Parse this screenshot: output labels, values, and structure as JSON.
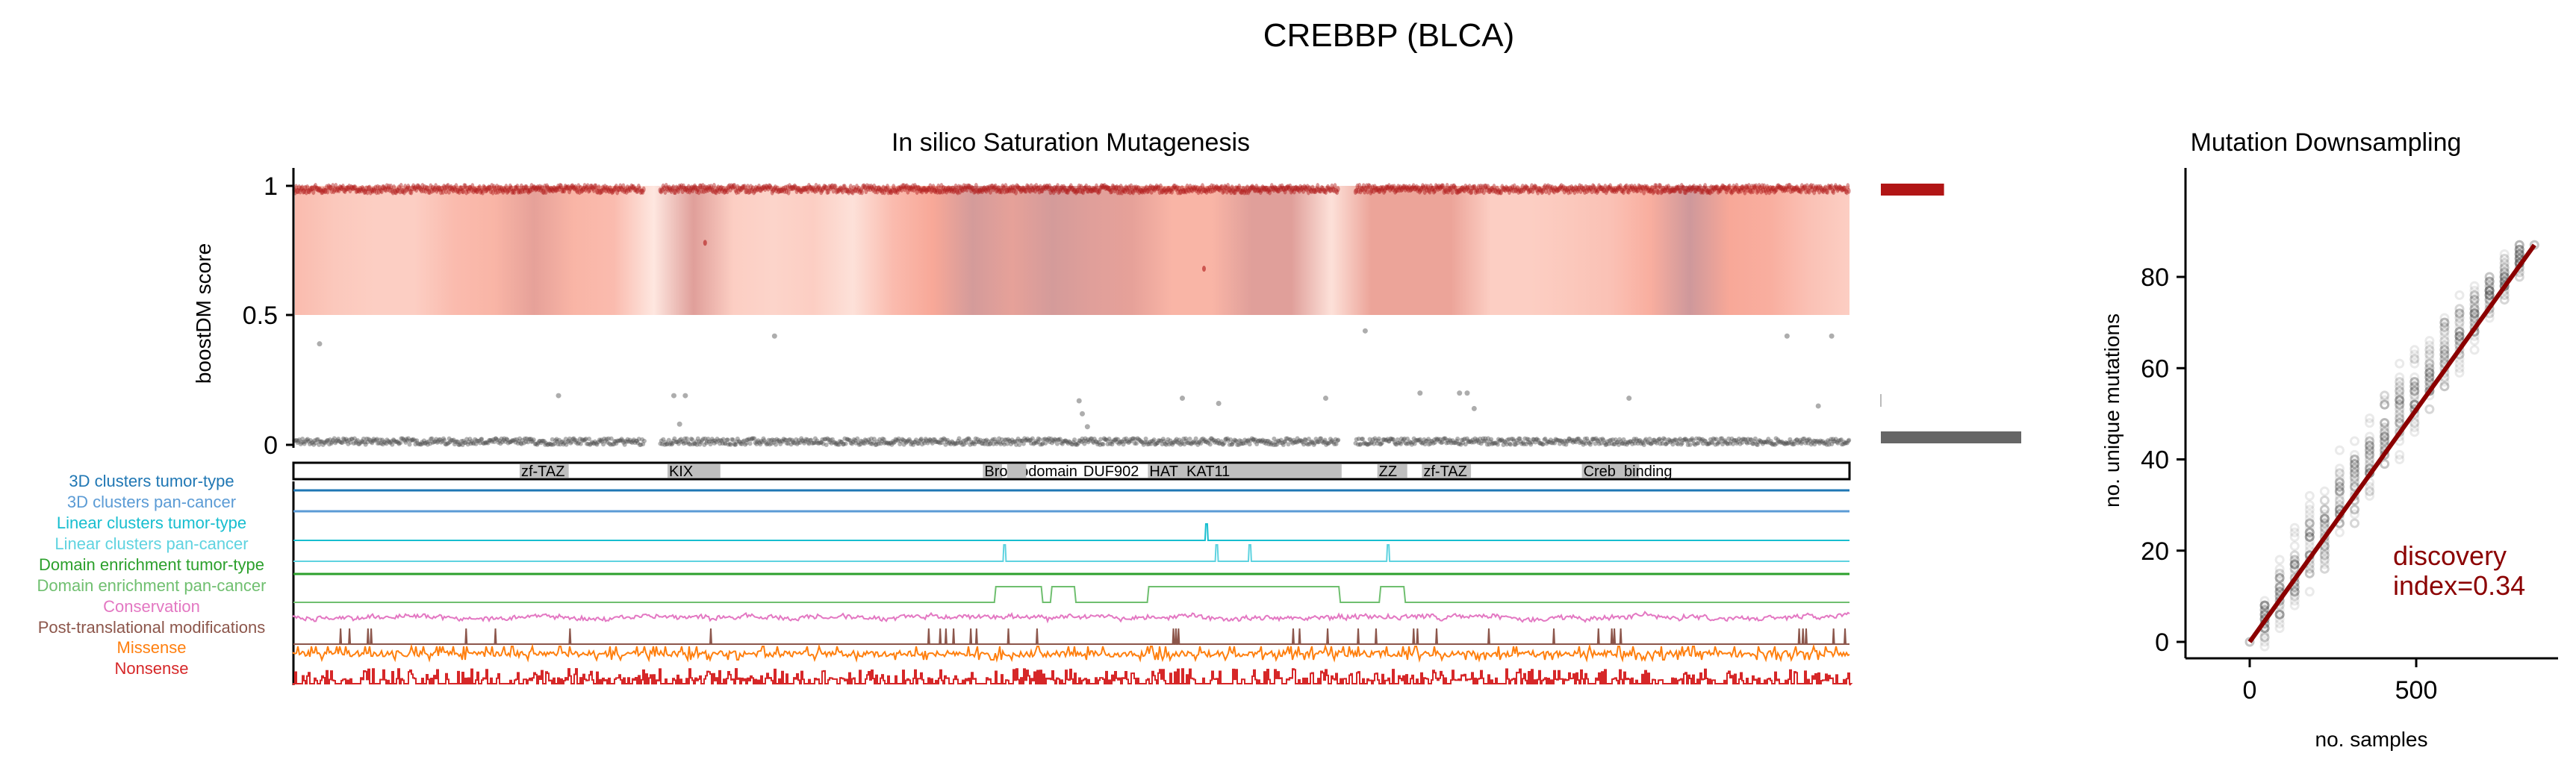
{
  "figure": {
    "title": "CREBBP (BLCA)"
  },
  "chart_data": [
    {
      "type": "heatmap",
      "title": "In silico Saturation Mutagenesis",
      "ylabel": "boostDM score",
      "yticks": [
        "0",
        "0.5",
        "1"
      ],
      "protein_length": 2442,
      "ylim": [
        0,
        1
      ],
      "heat_profile": [
        0.45,
        0.35,
        0.3,
        0.3,
        0.45,
        0.5,
        0.75,
        0.5,
        0.45,
        0.1,
        0.8,
        0.3,
        0.25,
        0.3,
        0.15,
        0.45,
        0.6,
        0.9,
        0.75,
        0.9,
        0.8,
        0.75,
        0.5,
        0.5,
        0.8,
        0.8,
        0.15,
        0.7,
        0.7,
        0.7,
        0.3,
        0.3,
        0.35,
        0.4,
        0.55,
        0.95,
        0.6,
        0.55,
        0.4,
        0.3
      ],
      "driver_outliers": [
        {
          "pos": 646,
          "score": 0.78
        },
        {
          "pos": 1429,
          "score": 0.68
        }
      ],
      "passenger_outliers": [
        {
          "pos": 41,
          "score": 0.39
        },
        {
          "pos": 416,
          "score": 0.19
        },
        {
          "pos": 597,
          "score": 0.19
        },
        {
          "pos": 615,
          "score": 0.19
        },
        {
          "pos": 606,
          "score": 0.08
        },
        {
          "pos": 755,
          "score": 0.42
        },
        {
          "pos": 1233,
          "score": 0.17
        },
        {
          "pos": 1238,
          "score": 0.12
        },
        {
          "pos": 1246,
          "score": 0.07
        },
        {
          "pos": 1395,
          "score": 0.18
        },
        {
          "pos": 1452,
          "score": 0.16
        },
        {
          "pos": 1620,
          "score": 0.18
        },
        {
          "pos": 1682,
          "score": 0.44
        },
        {
          "pos": 1768,
          "score": 0.2
        },
        {
          "pos": 1830,
          "score": 0.2
        },
        {
          "pos": 1842,
          "score": 0.2
        },
        {
          "pos": 1853,
          "score": 0.14
        },
        {
          "pos": 2096,
          "score": 0.18
        },
        {
          "pos": 2344,
          "score": 0.42
        },
        {
          "pos": 2393,
          "score": 0.15
        },
        {
          "pos": 2414,
          "score": 0.42
        }
      ],
      "side_bars": {
        "driver_fraction": 0.45,
        "passenger_fraction": 1.0
      },
      "domains": [
        {
          "name": "zf-TAZ",
          "start": 355,
          "end": 432
        },
        {
          "name": "KIX",
          "start": 587,
          "end": 670
        },
        {
          "name": "Bromodomain",
          "start": 1082,
          "end": 1112
        },
        {
          "name": "DUF902",
          "start": 1120,
          "end": 1150
        },
        {
          "name": "HAT_KAT11",
          "start": 1341,
          "end": 1645
        },
        {
          "name": "ZZ",
          "start": 1701,
          "end": 1748
        },
        {
          "name": "zf-TAZ",
          "start": 1771,
          "end": 1848
        },
        {
          "name": "Creb_binding",
          "start": 2022,
          "end": 2112
        }
      ],
      "tracks": [
        {
          "label": "3D clusters tumor-type",
          "color": "#1f77b4",
          "kind": "flat"
        },
        {
          "label": "3D clusters pan-cancer",
          "color": "#5b9bd5",
          "kind": "flat"
        },
        {
          "label": "Linear clusters tumor-type",
          "color": "#17becf",
          "kind": "peaks",
          "peaks": [
            1433
          ]
        },
        {
          "label": "Linear clusters pan-cancer",
          "color": "#5fd3e0",
          "kind": "peaks",
          "peaks": [
            1116,
            1449,
            1501,
            1718
          ]
        },
        {
          "label": "Domain enrichment tumor-type",
          "color": "#2ca02c",
          "kind": "flat"
        },
        {
          "label": "Domain enrichment pan-cancer",
          "color": "#6fbf6f",
          "kind": "segments",
          "segments": [
            [
              1100,
              1176
            ],
            [
              1188,
              1228
            ],
            [
              1340,
              1643
            ],
            [
              1704,
              1745
            ]
          ]
        },
        {
          "label": "Conservation",
          "color": "#e377c2",
          "kind": "noise"
        },
        {
          "label": "Post-translational modifications",
          "color": "#8c564b",
          "kind": "spikes",
          "positions": [
            74,
            88,
            117,
            122,
            271,
            317,
            434,
            655,
            997,
            1015,
            1024,
            1036,
            1063,
            1072,
            1122,
            1167,
            1381,
            1385,
            1389,
            1569,
            1579,
            1623,
            1671,
            1699,
            1758,
            1764,
            1794,
            1876,
            1978,
            2048,
            2069,
            2073,
            2083,
            2363,
            2369,
            2374,
            2417,
            2435
          ]
        },
        {
          "label": "Missense",
          "color": "#ff7f0e",
          "kind": "dense"
        },
        {
          "label": "Nonsense",
          "color": "#d62728",
          "kind": "bars"
        }
      ]
    },
    {
      "type": "scatter",
      "title": "Mutation Downsampling",
      "xlabel": "no. samples",
      "ylabel": "no. unique mutations",
      "xlim": [
        -40,
        900
      ],
      "ylim": [
        -4,
        92
      ],
      "xticks": [
        "0",
        "500"
      ],
      "yticks": [
        "0",
        "20",
        "40",
        "60",
        "80"
      ],
      "x": [
        0,
        45,
        90,
        135,
        180,
        225,
        270,
        315,
        360,
        405,
        450,
        495,
        540,
        585,
        630,
        675,
        720,
        765,
        810,
        855
      ],
      "y_mean": [
        0,
        5,
        10,
        15,
        21,
        25,
        31,
        35,
        40,
        46,
        51,
        55,
        59,
        63,
        67,
        72,
        76,
        80,
        84,
        87
      ],
      "y_spread": [
        0,
        6,
        8,
        10,
        11,
        11,
        12,
        12,
        12,
        11,
        11,
        11,
        10,
        10,
        9,
        8,
        7,
        6,
        4,
        0
      ],
      "fit_color": "#8b0000",
      "annotation": [
        "discovery",
        "index=0.34"
      ]
    }
  ]
}
